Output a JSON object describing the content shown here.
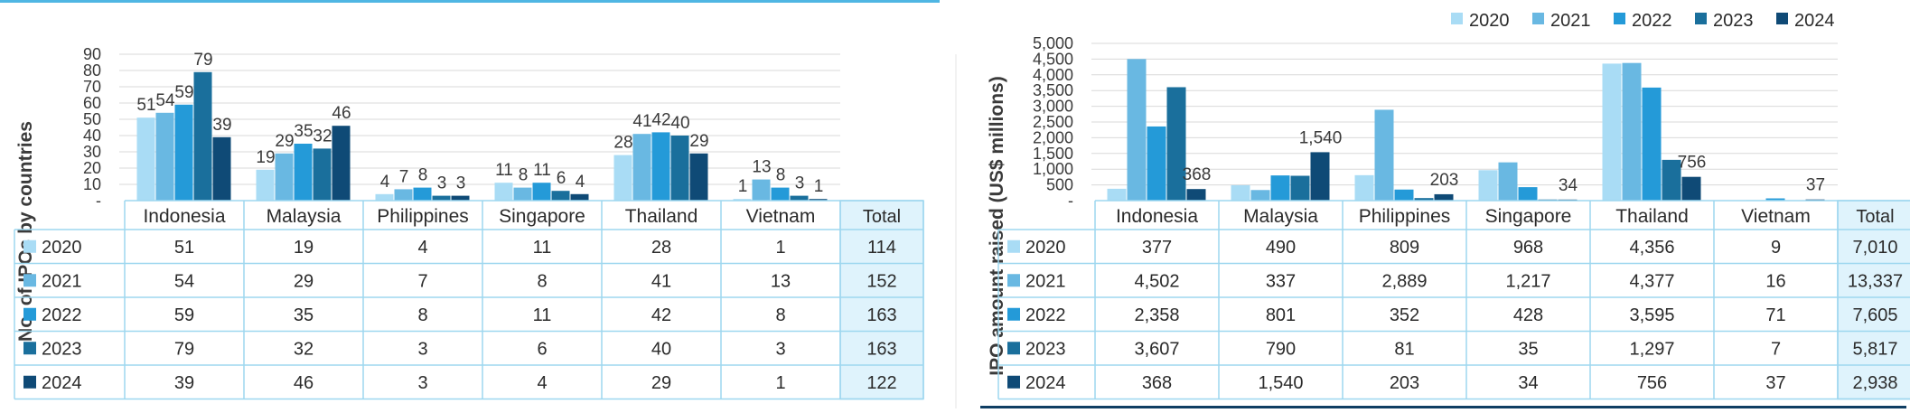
{
  "colors": {
    "2020": "#a9dcf5",
    "2021": "#69b8e2",
    "2022": "#249ad8",
    "2023": "#1a6f9c",
    "2024": "#0f4a76",
    "table_border": "#9ed7ef",
    "total_fill": "#dff3fc",
    "grid": "#d9d9d9",
    "accent_line": "#4fb6e3"
  },
  "legend": [
    "2020",
    "2021",
    "2022",
    "2023",
    "2024"
  ],
  "chart_data": [
    {
      "type": "bar",
      "ylabel": "No. of IPOs by countries",
      "ylim": [
        0,
        90
      ],
      "yticks": [
        "-",
        "10",
        "20",
        "30",
        "40",
        "50",
        "60",
        "70",
        "80",
        "90"
      ],
      "categories": [
        "Indonesia",
        "Malaysia",
        "Philippines",
        "Singapore",
        "Thailand",
        "Vietnam"
      ],
      "total_label": "Total",
      "series": [
        {
          "name": "2020",
          "values": [
            51,
            19,
            4,
            11,
            28,
            1
          ],
          "total": "114",
          "labels": [
            "51",
            "19",
            "4",
            "11",
            "28",
            "1"
          ],
          "cells": [
            "51",
            "19",
            "4",
            "11",
            "28",
            "1"
          ]
        },
        {
          "name": "2021",
          "values": [
            54,
            29,
            7,
            8,
            41,
            13
          ],
          "total": "152",
          "labels": [
            "54",
            "29",
            "7",
            "8",
            "41",
            "13"
          ],
          "cells": [
            "54",
            "29",
            "7",
            "8",
            "41",
            "13"
          ]
        },
        {
          "name": "2022",
          "values": [
            59,
            35,
            8,
            11,
            42,
            8
          ],
          "total": "163",
          "labels": [
            "59",
            "35",
            "8",
            "11",
            "42",
            "8"
          ],
          "cells": [
            "59",
            "35",
            "8",
            "11",
            "42",
            "8"
          ]
        },
        {
          "name": "2023",
          "values": [
            79,
            32,
            3,
            6,
            40,
            3
          ],
          "total": "163",
          "labels": [
            "79",
            "32",
            "3",
            "6",
            "40",
            "3"
          ],
          "cells": [
            "79",
            "32",
            "3",
            "6",
            "40",
            "3"
          ]
        },
        {
          "name": "2024",
          "values": [
            39,
            46,
            3,
            4,
            29,
            1
          ],
          "total": "122",
          "labels": [
            "39",
            "46",
            "3",
            "4",
            "29",
            "1"
          ],
          "cells": [
            "39",
            "46",
            "3",
            "4",
            "29",
            "1"
          ]
        }
      ]
    },
    {
      "type": "bar",
      "ylabel": "IPO amount raised (US$ millions)",
      "ylim": [
        0,
        5000
      ],
      "yticks": [
        "-",
        "500",
        "1,000",
        "1,500",
        "2,000",
        "2,500",
        "3,000",
        "3,500",
        "4,000",
        "4,500",
        "5,000"
      ],
      "categories": [
        "Indonesia",
        "Malaysia",
        "Philippines",
        "Singapore",
        "Thailand",
        "Vietnam"
      ],
      "total_label": "Total",
      "series": [
        {
          "name": "2020",
          "values": [
            377,
            490,
            809,
            968,
            4356,
            9
          ],
          "total": "7,010",
          "labels": [
            "",
            "",
            "",
            "",
            "",
            ""
          ],
          "cells": [
            "377",
            "490",
            "809",
            "968",
            "4,356",
            "9"
          ]
        },
        {
          "name": "2021",
          "values": [
            4502,
            337,
            2889,
            1217,
            4377,
            16
          ],
          "total": "13,337",
          "labels": [
            "",
            "",
            "",
            "",
            "",
            ""
          ],
          "cells": [
            "4,502",
            "337",
            "2,889",
            "1,217",
            "4,377",
            "16"
          ]
        },
        {
          "name": "2022",
          "values": [
            2358,
            801,
            352,
            428,
            3595,
            71
          ],
          "total": "7,605",
          "labels": [
            "",
            "",
            "",
            "",
            "",
            ""
          ],
          "cells": [
            "2,358",
            "801",
            "352",
            "428",
            "3,595",
            "71"
          ]
        },
        {
          "name": "2023",
          "values": [
            3607,
            790,
            81,
            35,
            1297,
            7
          ],
          "total": "5,817",
          "labels": [
            "",
            "",
            "",
            "",
            "",
            ""
          ],
          "cells": [
            "3,607",
            "790",
            "81",
            "35",
            "1,297",
            "7"
          ]
        },
        {
          "name": "2024",
          "values": [
            368,
            1540,
            203,
            34,
            756,
            37
          ],
          "total": "2,938",
          "labels": [
            "368",
            "1,540",
            "203",
            "34",
            "756",
            "37"
          ],
          "cells": [
            "368",
            "1,540",
            "203",
            "34",
            "756",
            "37"
          ]
        }
      ]
    }
  ]
}
